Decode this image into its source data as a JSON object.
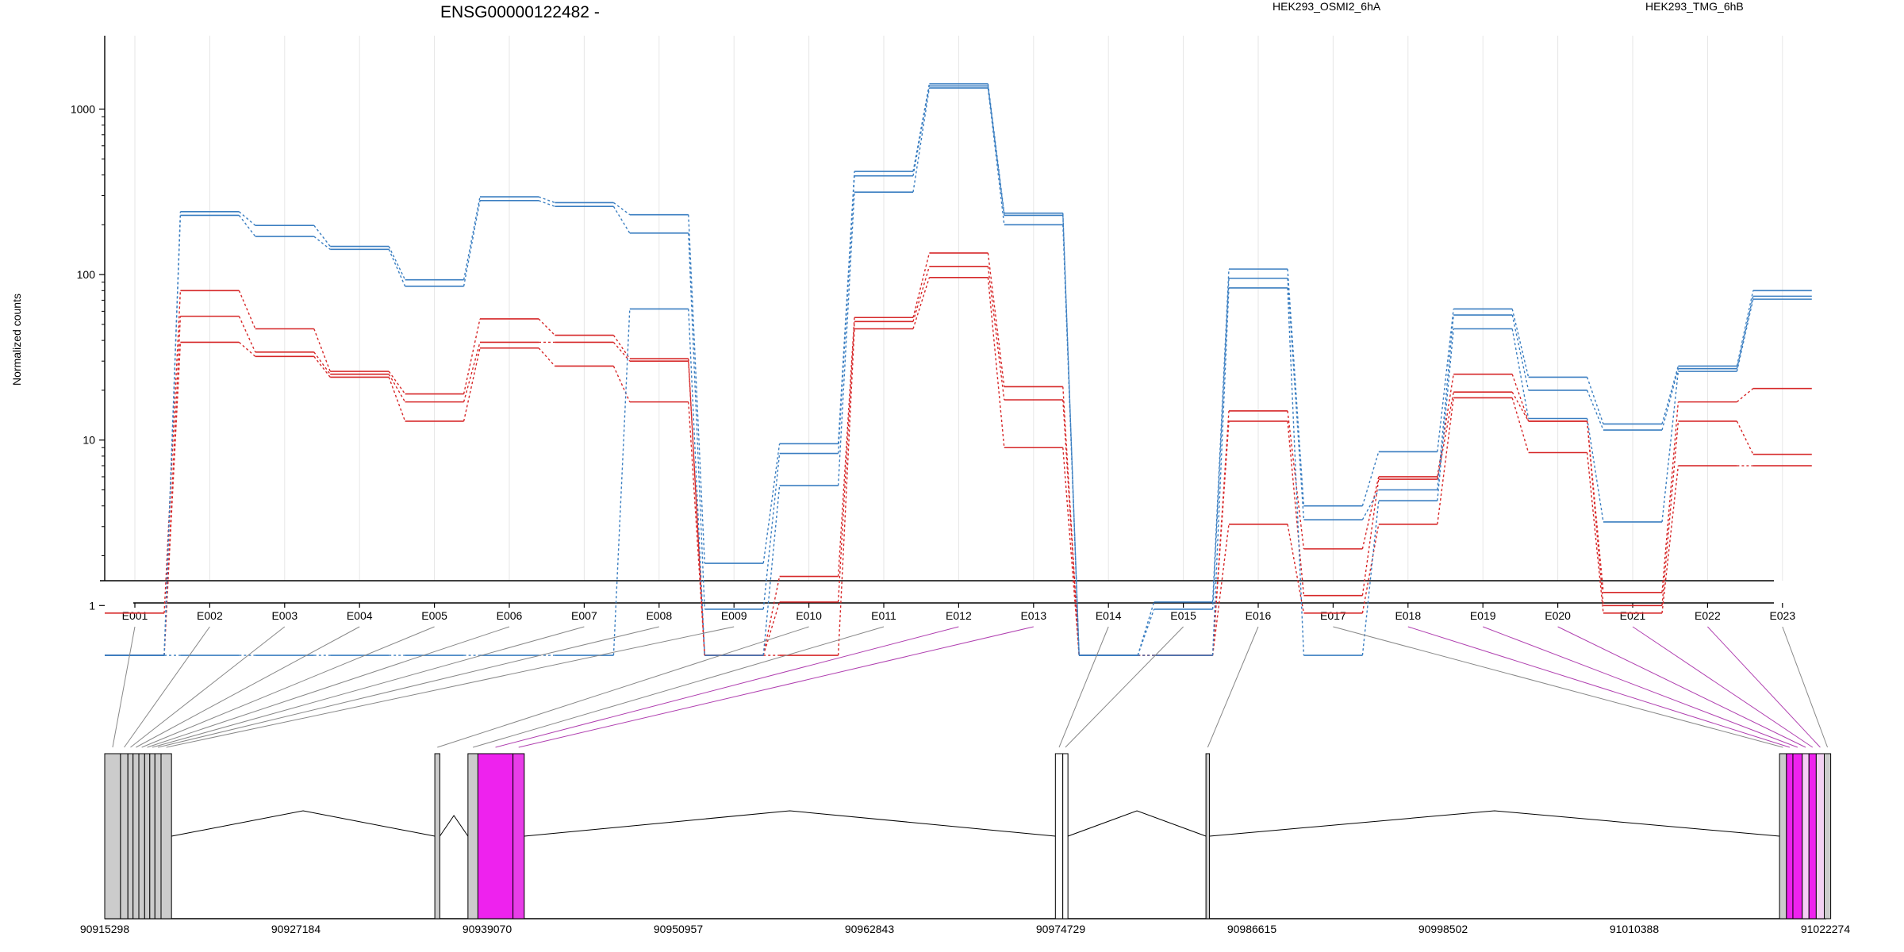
{
  "chart_data": {
    "type": "line",
    "title": "ENSG00000122482 -",
    "ylabel": "Normalized counts",
    "yscale": "log",
    "ylim": [
      0.5,
      1800
    ],
    "yticks": [
      1,
      10,
      100,
      1000
    ],
    "ytick_labels": [
      "1",
      "10",
      "100",
      "1000"
    ],
    "grid": "vertical",
    "legend_placement": "top",
    "categories": [
      "E001",
      "E002",
      "E003",
      "E004",
      "E005",
      "E006",
      "E007",
      "E008",
      "E009",
      "E010",
      "E011",
      "E012",
      "E013",
      "E014",
      "E015",
      "E016",
      "E017",
      "E018",
      "E019",
      "E020",
      "E021",
      "E022",
      "E023"
    ],
    "series_colors": {
      "HEK293_OSMI2_6hA": "#d62728",
      "HEK293_TMG_6hB": "#3a7ec1"
    },
    "legend": [
      {
        "name": "HEK293_OSMI2_6hA",
        "color": "#d62728"
      },
      {
        "name": "HEK293_TMG_6hB",
        "color": "#3a7ec1"
      }
    ],
    "series": [
      {
        "group": "HEK293_OSMI2_6hA",
        "values": [
          0.9,
          80,
          47,
          26,
          19,
          54,
          43,
          31,
          0.5,
          1.5,
          55,
          135,
          21,
          0.5,
          0.5,
          15,
          2.2,
          6,
          25,
          13,
          1.2,
          17,
          20.5
        ]
      },
      {
        "group": "HEK293_OSMI2_6hA",
        "values": [
          0.5,
          56,
          34,
          25,
          17,
          39,
          39,
          30,
          0.5,
          1.05,
          52,
          112,
          17.5,
          0.5,
          0.5,
          13,
          1.15,
          5.8,
          19.5,
          13,
          1.0,
          13,
          8.2
        ]
      },
      {
        "group": "HEK293_OSMI2_6hA",
        "values": [
          0.5,
          39,
          32,
          24,
          13,
          36,
          28,
          17,
          0.5,
          0.5,
          47,
          96,
          9,
          0.5,
          0.5,
          3.1,
          0.9,
          3.1,
          18,
          8.4,
          0.9,
          7,
          7
        ]
      },
      {
        "group": "HEK293_TMG_6hB",
        "values": [
          0.5,
          240,
          198,
          148,
          93,
          295,
          272,
          230,
          1.8,
          9.5,
          420,
          1420,
          235,
          0.5,
          1.05,
          108,
          4,
          8.5,
          62,
          24,
          12.5,
          28,
          80
        ]
      },
      {
        "group": "HEK293_TMG_6hB",
        "values": [
          0.5,
          228,
          170,
          142,
          85,
          280,
          258,
          178,
          0.95,
          8.3,
          395,
          1380,
          228,
          0.5,
          0.95,
          95,
          3.3,
          5.0,
          57,
          20,
          11.5,
          27,
          74
        ]
      },
      {
        "group": "HEK293_TMG_6hB",
        "values": [
          0.5,
          0.5,
          0.5,
          0.5,
          0.5,
          0.5,
          0.5,
          62,
          0.5,
          5.3,
          315,
          1340,
          200,
          0.5,
          0.5,
          83,
          0.5,
          4.3,
          47,
          13.5,
          3.2,
          26,
          71
        ]
      }
    ],
    "gene_model": {
      "coord_labels": [
        "90915298",
        "90927184",
        "90939070",
        "90950957",
        "90962843",
        "90974729",
        "90986615",
        "90998502",
        "91010388",
        "91022274"
      ],
      "exon_color": "#cccccc",
      "highlight_color": "#ee22ee",
      "highlighted_exons": [
        "E012",
        "E013",
        "E018",
        "E019",
        "E020",
        "E021",
        "E022"
      ]
    }
  }
}
